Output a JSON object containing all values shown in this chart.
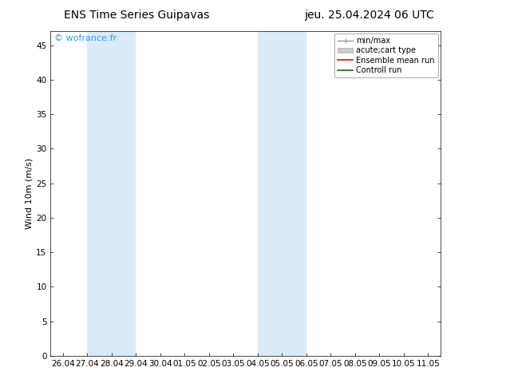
{
  "title_left": "ENS Time Series Guipavas",
  "title_right": "jeu. 25.04.2024 06 UTC",
  "ylabel": "Wind 10m (m/s)",
  "watermark": "© wofrance.fr",
  "ylim": [
    0,
    47
  ],
  "yticks": [
    0,
    5,
    10,
    15,
    20,
    25,
    30,
    35,
    40,
    45
  ],
  "xtick_labels": [
    "26.04",
    "27.04",
    "28.04",
    "29.04",
    "30.04",
    "01.05",
    "02.05",
    "03.05",
    "04.05",
    "05.05",
    "06.05",
    "07.05",
    "08.05",
    "09.05",
    "10.05",
    "11.05"
  ],
  "xtick_positions": [
    0,
    1,
    2,
    3,
    4,
    5,
    6,
    7,
    8,
    9,
    10,
    11,
    12,
    13,
    14,
    15
  ],
  "xlim": [
    -0.5,
    15.5
  ],
  "shaded_bands": [
    {
      "x_start": 1,
      "x_end": 3
    },
    {
      "x_start": 8,
      "x_end": 10
    }
  ],
  "shade_color": "#daeaf8",
  "background_color": "#ffffff",
  "plot_bg_color": "#ffffff",
  "legend_entries": [
    {
      "label": "min/max",
      "color": "#999999",
      "lw": 1.0,
      "style": "errbar"
    },
    {
      "label": "acute;cart type",
      "color": "#cccccc",
      "lw": 6,
      "style": "rect"
    },
    {
      "label": "Ensemble mean run",
      "color": "#ff0000",
      "lw": 1.2,
      "style": "line"
    },
    {
      "label": "Controll run",
      "color": "#008000",
      "lw": 1.2,
      "style": "line"
    }
  ],
  "title_fontsize": 10,
  "label_fontsize": 8,
  "tick_fontsize": 7.5,
  "legend_fontsize": 7,
  "watermark_color": "#3399ff",
  "watermark_fontsize": 8
}
